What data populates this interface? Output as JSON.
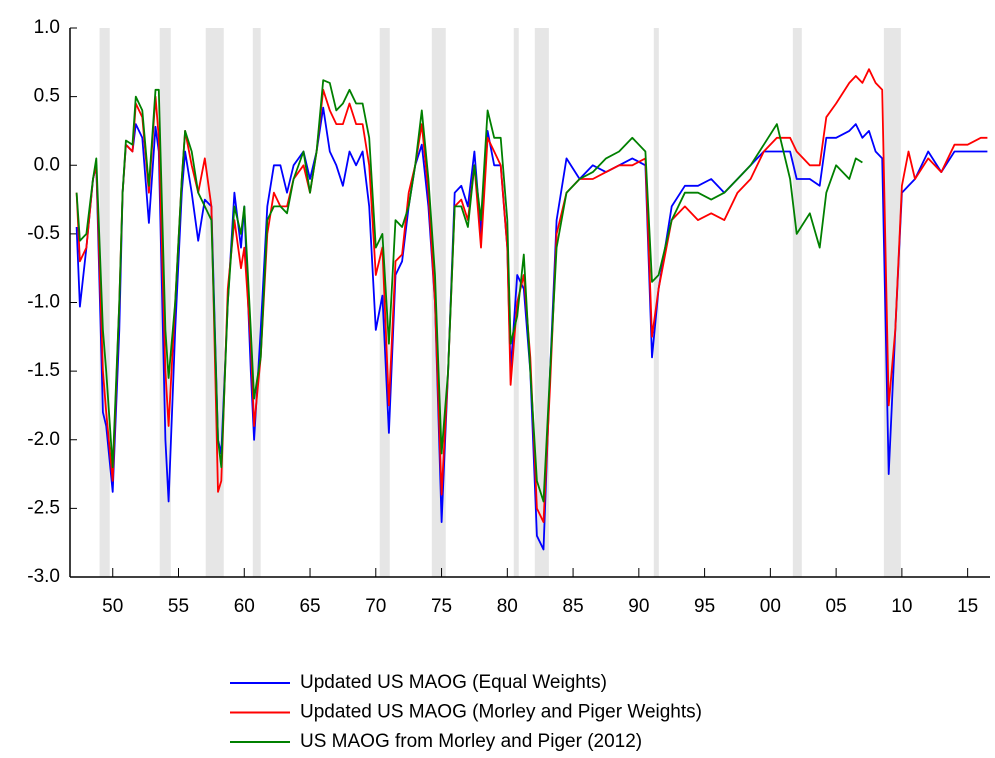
{
  "chart_data": {
    "type": "line",
    "xlim": [
      1946.75,
      2016.7
    ],
    "ylim": [
      -3.0,
      1.0
    ],
    "yticks": [
      {
        "value": 1.0,
        "label": "1.0"
      },
      {
        "value": 0.5,
        "label": "0.5"
      },
      {
        "value": 0.0,
        "label": "0.0"
      },
      {
        "value": -0.5,
        "label": "-0.5"
      },
      {
        "value": -1.0,
        "label": "-1.0"
      },
      {
        "value": -1.5,
        "label": "-1.5"
      },
      {
        "value": -2.0,
        "label": "-2.0"
      },
      {
        "value": -2.5,
        "label": "-2.5"
      },
      {
        "value": -3.0,
        "label": "-3.0"
      }
    ],
    "xticks": [
      {
        "value": 1950,
        "label": "50"
      },
      {
        "value": 1955,
        "label": "55"
      },
      {
        "value": 1960,
        "label": "60"
      },
      {
        "value": 1965,
        "label": "65"
      },
      {
        "value": 1970,
        "label": "70"
      },
      {
        "value": 1975,
        "label": "75"
      },
      {
        "value": 1980,
        "label": "80"
      },
      {
        "value": 1985,
        "label": "85"
      },
      {
        "value": 1990,
        "label": "90"
      },
      {
        "value": 1995,
        "label": "95"
      },
      {
        "value": 2000,
        "label": "00"
      },
      {
        "value": 2005,
        "label": "05"
      },
      {
        "value": 2010,
        "label": "10"
      },
      {
        "value": 2015,
        "label": "15"
      }
    ],
    "legend": "bottom",
    "shade_color": "#e6e6e6",
    "recessions": [
      [
        1949.0,
        1949.77
      ],
      [
        1953.57,
        1954.41
      ],
      [
        1957.07,
        1958.44
      ],
      [
        1960.65,
        1961.25
      ],
      [
        1970.3,
        1971.06
      ],
      [
        1974.26,
        1975.32
      ],
      [
        1980.49,
        1980.87
      ],
      [
        1982.09,
        1983.16
      ],
      [
        1991.14,
        1991.52
      ],
      [
        2001.71,
        2002.39
      ],
      [
        2008.63,
        2009.92
      ]
    ],
    "x": [
      1947.25,
      1947.5,
      1948,
      1948.5,
      1948.75,
      1949.25,
      1949.5,
      1950,
      1950.5,
      1950.75,
      1951,
      1951.5,
      1951.75,
      1952.25,
      1952.75,
      1953.25,
      1953.5,
      1954,
      1954.25,
      1954.75,
      1955.25,
      1955.5,
      1956,
      1956.5,
      1957,
      1957.5,
      1958,
      1958.25,
      1958.75,
      1959.25,
      1959.75,
      1960,
      1960.5,
      1960.75,
      1961.25,
      1961.75,
      1962.25,
      1962.75,
      1963.25,
      1963.75,
      1964.5,
      1965,
      1965.5,
      1966,
      1966.5,
      1967,
      1967.5,
      1968,
      1968.5,
      1969,
      1969.5,
      1970,
      1970.5,
      1971,
      1971.5,
      1972,
      1972.5,
      1973,
      1973.5,
      1974,
      1974.5,
      1975,
      1975.5,
      1976,
      1976.5,
      1977,
      1977.5,
      1978,
      1978.5,
      1979,
      1979.5,
      1980,
      1980.25,
      1980.75,
      1981.25,
      1981.75,
      1982.25,
      1982.75,
      1983.25,
      1983.75,
      1984.5,
      1985.5,
      1986.5,
      1987.5,
      1988.5,
      1989.5,
      1990.5,
      1991,
      1991.5,
      1992.5,
      1993.5,
      1994.5,
      1995.5,
      1996.5,
      1997.5,
      1998.5,
      1999.5,
      2000.5,
      2001.5,
      2002,
      2003,
      2003.75,
      2004.25,
      2005,
      2006,
      2006.5,
      2007,
      2007.5,
      2008,
      2008.5,
      2009,
      2009.5,
      2010,
      2010.5,
      2011,
      2012,
      2013,
      2014,
      2015,
      2016,
      2016.5
    ],
    "series": [
      {
        "name": "Updated US MAOG (Equal Weights)",
        "color": "#0000ff",
        "values": [
          -0.45,
          -1.03,
          -0.6,
          -0.1,
          0.0,
          -1.8,
          -1.9,
          -2.38,
          -1.2,
          -0.2,
          0.15,
          0.1,
          0.3,
          0.2,
          -0.42,
          0.28,
          0.1,
          -2.0,
          -2.45,
          -1.2,
          -0.2,
          0.1,
          -0.2,
          -0.55,
          -0.25,
          -0.3,
          -2.0,
          -2.1,
          -1.0,
          -0.2,
          -0.6,
          -0.3,
          -1.5,
          -2.0,
          -1.2,
          -0.3,
          0.0,
          0.0,
          -0.2,
          0.0,
          0.1,
          -0.1,
          0.1,
          0.42,
          0.1,
          0.0,
          -0.15,
          0.1,
          0.0,
          0.1,
          -0.3,
          -1.2,
          -0.95,
          -1.95,
          -0.8,
          -0.7,
          -0.3,
          0.0,
          0.15,
          -0.3,
          -1.0,
          -2.6,
          -1.5,
          -0.2,
          -0.15,
          -0.3,
          0.1,
          -0.5,
          0.25,
          0.0,
          0.0,
          -0.6,
          -1.5,
          -0.8,
          -0.9,
          -1.5,
          -2.7,
          -2.8,
          -1.5,
          -0.4,
          0.05,
          -0.1,
          0.0,
          -0.05,
          0.0,
          0.05,
          0.0,
          -1.4,
          -0.9,
          -0.3,
          -0.15,
          -0.15,
          -0.1,
          -0.2,
          -0.1,
          0.0,
          0.1,
          0.1,
          0.1,
          -0.1,
          -0.1,
          -0.15,
          0.2,
          0.2,
          0.25,
          0.3,
          0.2,
          0.25,
          0.1,
          0.05,
          -2.25,
          -1.2,
          -0.2,
          -0.15,
          -0.1,
          0.1,
          -0.05,
          0.1,
          0.1,
          0.1,
          0.1
        ]
      },
      {
        "name": "Updated US MAOG (Morley and Piger Weights)",
        "color": "#ff0000",
        "values": [
          -0.2,
          -0.7,
          -0.6,
          -0.1,
          0.0,
          -1.5,
          -1.8,
          -2.3,
          -1.0,
          -0.2,
          0.15,
          0.1,
          0.45,
          0.35,
          -0.2,
          0.5,
          0.2,
          -1.5,
          -1.9,
          -1.0,
          -0.1,
          0.25,
          0.0,
          -0.2,
          0.05,
          -0.3,
          -2.38,
          -2.3,
          -0.9,
          -0.4,
          -0.75,
          -0.6,
          -1.3,
          -1.9,
          -1.4,
          -0.5,
          -0.2,
          -0.3,
          -0.3,
          -0.1,
          0.0,
          -0.2,
          0.1,
          0.55,
          0.4,
          0.3,
          0.3,
          0.45,
          0.3,
          0.3,
          0.0,
          -0.8,
          -0.6,
          -1.75,
          -0.7,
          -0.65,
          -0.2,
          0.0,
          0.3,
          -0.2,
          -1.0,
          -2.4,
          -1.5,
          -0.3,
          -0.25,
          -0.4,
          0.0,
          -0.6,
          0.2,
          0.1,
          0.0,
          -0.6,
          -1.6,
          -1.0,
          -0.8,
          -1.4,
          -2.5,
          -2.6,
          -1.6,
          -0.5,
          -0.2,
          -0.1,
          -0.1,
          -0.05,
          0.0,
          0.0,
          0.05,
          -1.25,
          -0.9,
          -0.4,
          -0.3,
          -0.4,
          -0.35,
          -0.4,
          -0.2,
          -0.1,
          0.1,
          0.2,
          0.2,
          0.1,
          0.0,
          0.0,
          0.35,
          0.45,
          0.6,
          0.65,
          0.6,
          0.7,
          0.6,
          0.55,
          -1.75,
          -1.2,
          -0.15,
          0.1,
          -0.1,
          0.05,
          -0.05,
          0.15,
          0.15,
          0.2,
          0.2
        ]
      },
      {
        "name": "US MAOG from Morley and Piger (2012)",
        "color": "#008000",
        "values": [
          -0.2,
          -0.55,
          -0.5,
          -0.1,
          0.05,
          -1.2,
          -1.5,
          -2.2,
          -1.0,
          -0.2,
          0.18,
          0.15,
          0.5,
          0.4,
          -0.15,
          0.55,
          0.55,
          -1.2,
          -1.55,
          -1.0,
          -0.1,
          0.25,
          0.1,
          -0.2,
          -0.3,
          -0.4,
          -2.0,
          -2.2,
          -1.0,
          -0.3,
          -0.5,
          -0.3,
          -1.2,
          -1.7,
          -1.4,
          -0.4,
          -0.3,
          -0.3,
          -0.35,
          -0.1,
          0.1,
          -0.2,
          0.1,
          0.62,
          0.6,
          0.4,
          0.45,
          0.55,
          0.45,
          0.45,
          0.2,
          -0.6,
          -0.5,
          -1.3,
          -0.4,
          -0.45,
          -0.3,
          0.0,
          0.4,
          -0.1,
          -0.8,
          -2.1,
          -1.5,
          -0.3,
          -0.3,
          -0.45,
          0.0,
          -0.4,
          0.4,
          0.2,
          0.2,
          -0.4,
          -1.3,
          -1.1,
          -0.65,
          -1.5,
          -2.3,
          -2.45,
          -1.5,
          -0.6,
          -0.2,
          -0.1,
          -0.05,
          0.05,
          0.1,
          0.2,
          0.1,
          -0.85,
          -0.8,
          -0.4,
          -0.2,
          -0.2,
          -0.25,
          -0.2,
          -0.1,
          0.0,
          0.15,
          0.3,
          -0.1,
          -0.5,
          -0.35,
          -0.6,
          -0.2,
          0.0,
          -0.1,
          0.05,
          0.02,
          null,
          null,
          null,
          null,
          null,
          null,
          null,
          null,
          null,
          null,
          null,
          null,
          null,
          null
        ]
      }
    ]
  }
}
